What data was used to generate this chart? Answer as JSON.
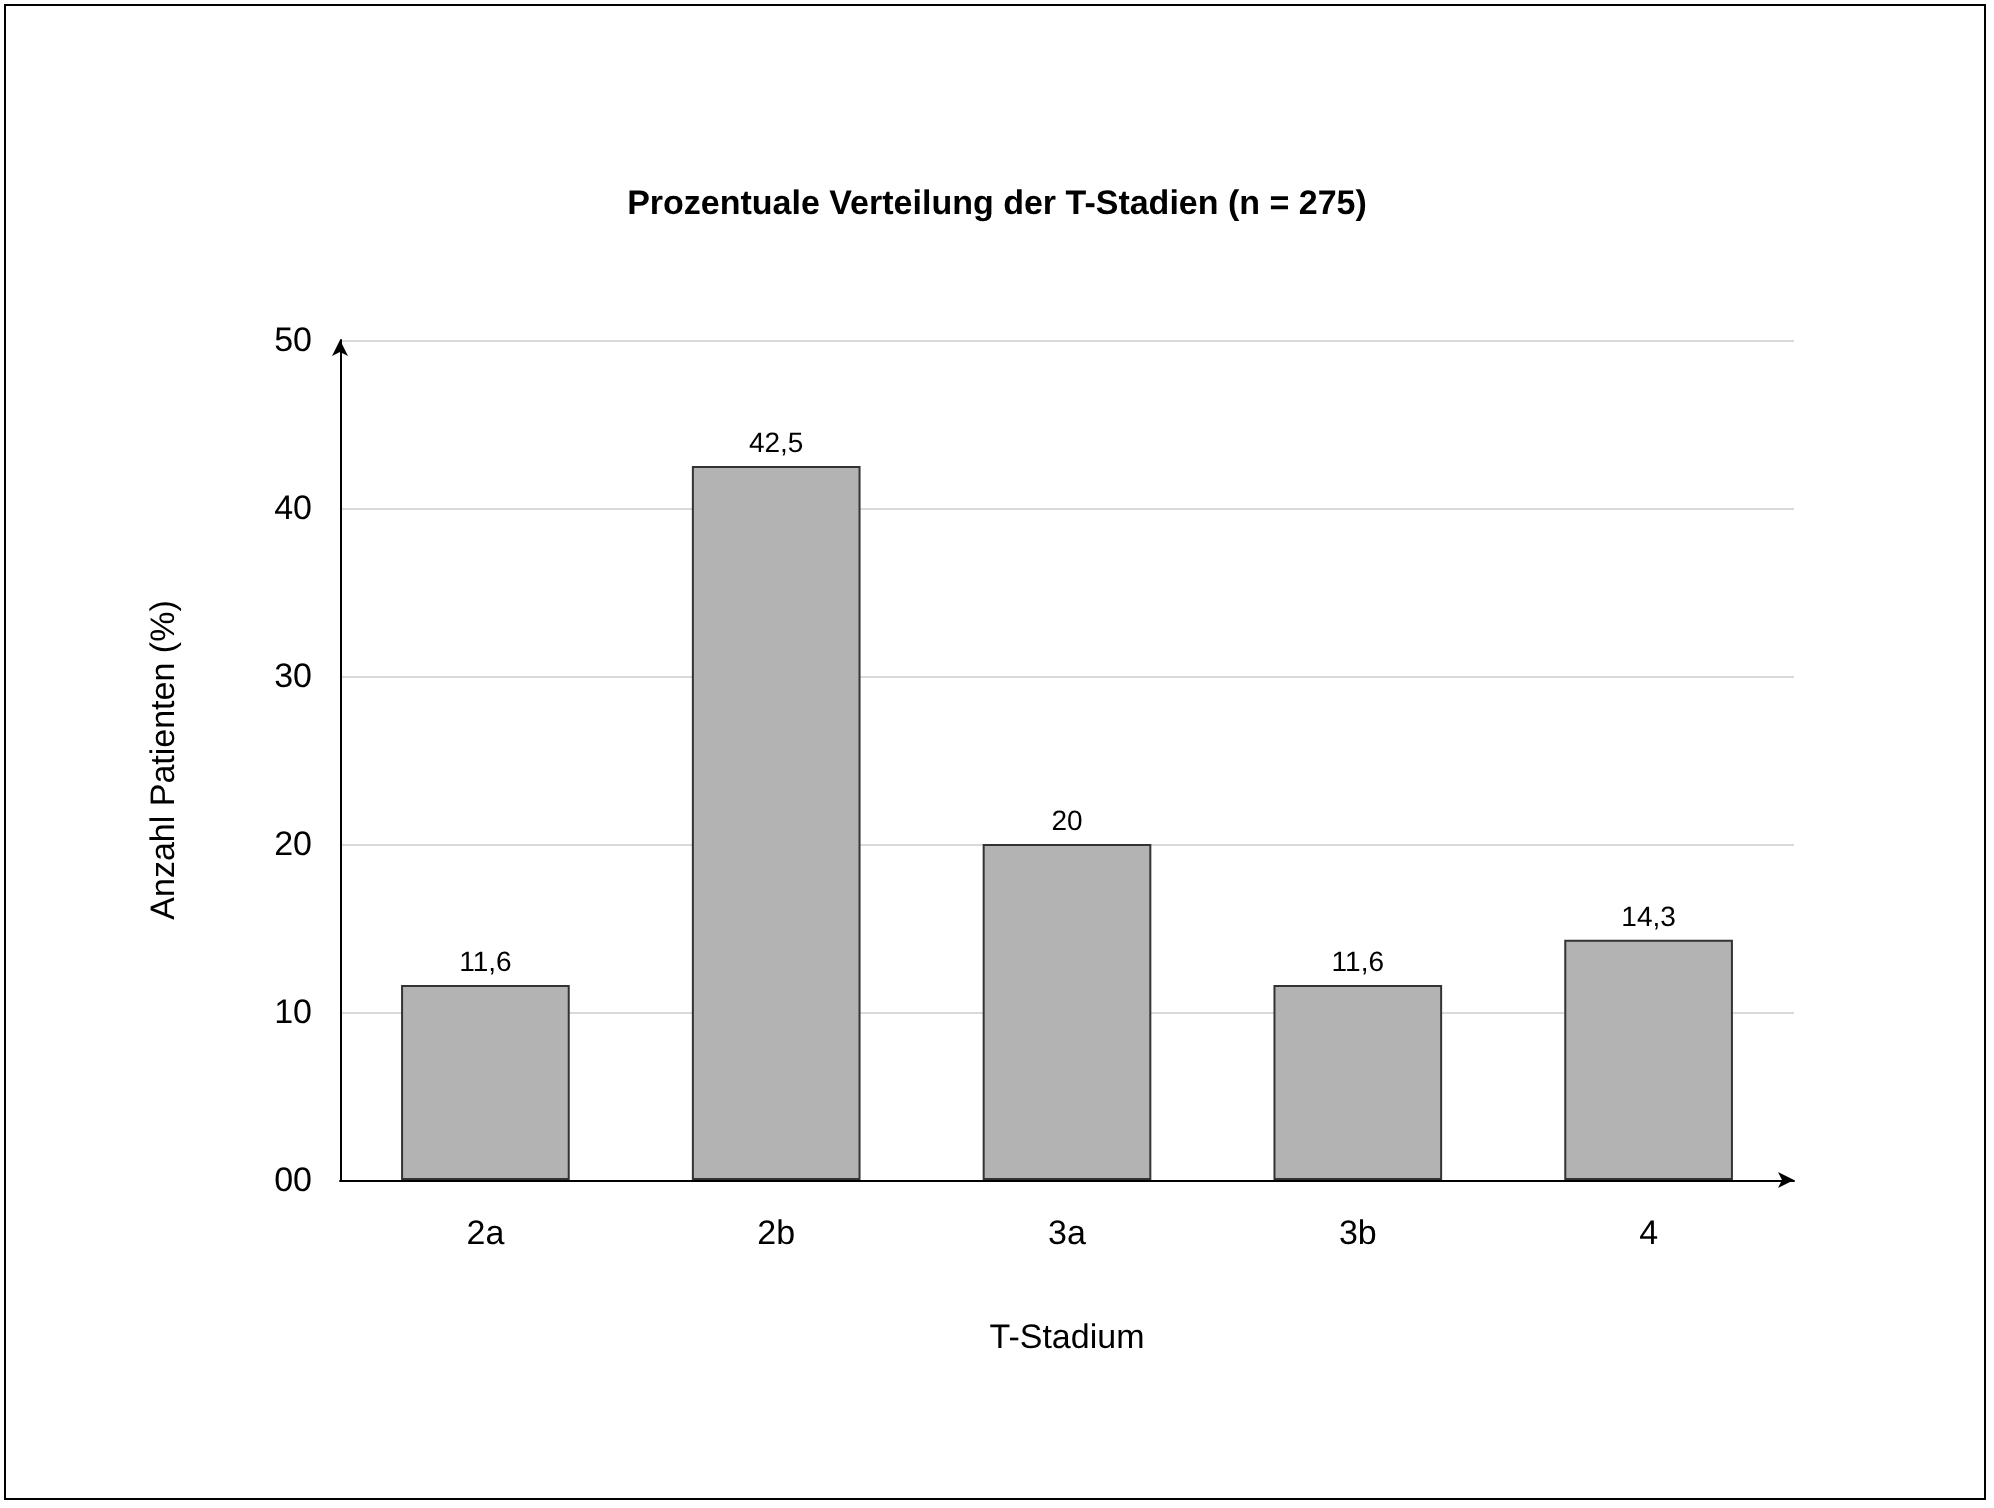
{
  "chart_data": {
    "type": "bar",
    "title": "Prozentuale Verteilung der T-Stadien (n = 275)",
    "xlabel": "T-Stadium",
    "ylabel": "Anzahl Patienten (%)",
    "categories": [
      "2a",
      "2b",
      "3a",
      "3b",
      "4"
    ],
    "values": [
      11.6,
      42.5,
      20,
      11.6,
      14.3
    ],
    "value_labels": [
      "11,6",
      "42,5",
      "20",
      "11,6",
      "14,3"
    ],
    "color": "#b3b3b3",
    "ylim": [
      0,
      50
    ],
    "yticks": [
      {
        "value": 0,
        "label": "00"
      },
      10,
      20,
      30,
      40,
      50
    ],
    "grid": "y"
  }
}
